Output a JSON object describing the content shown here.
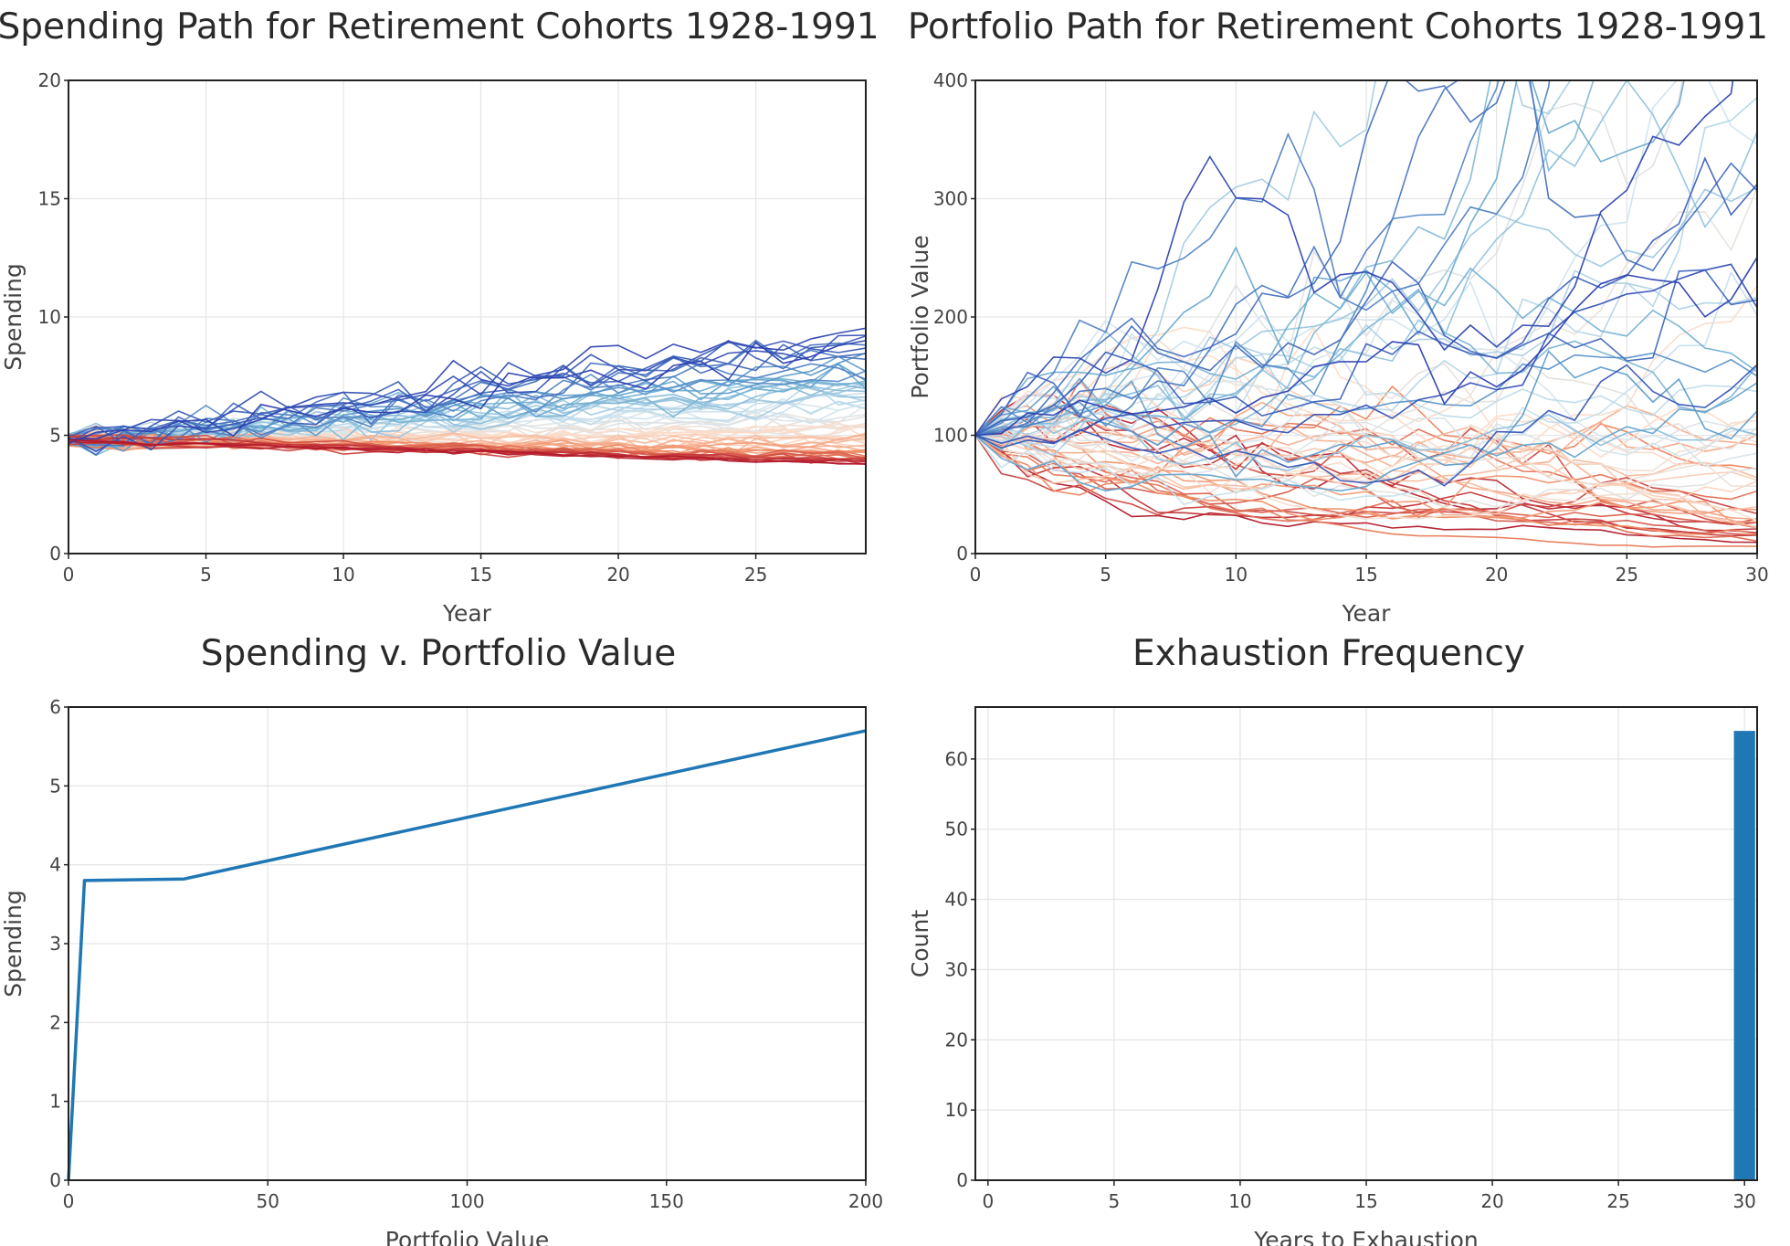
{
  "chart_data": [
    {
      "id": "spending-path",
      "type": "line",
      "title": "Spending Path for Retirement Cohorts 1928-1991",
      "xlabel": "Year",
      "ylabel": "Spending",
      "xlim": [
        0,
        29
      ],
      "ylim": [
        0,
        20
      ],
      "xticks": [
        0,
        5,
        10,
        15,
        20,
        25
      ],
      "yticks": [
        0,
        5,
        10,
        15,
        20
      ],
      "grid": true,
      "n_series": 64,
      "colormap": [
        "#b2182b",
        "#ef8a62",
        "#fddbc7",
        "#d1e5f0",
        "#67a9cf",
        "#2b3fb0"
      ],
      "start_value": 4.8,
      "end_range": [
        3.8,
        9.8
      ],
      "note_series": "64 cohort paths colored from red (lowest) to blue (highest)"
    },
    {
      "id": "portfolio-path",
      "type": "line",
      "title": "Portfolio Path for Retirement Cohorts 1928-1991",
      "xlabel": "Year",
      "ylabel": "Portfolio Value",
      "xlim": [
        0,
        30
      ],
      "ylim": [
        0,
        400
      ],
      "xticks": [
        0,
        5,
        10,
        15,
        20,
        25,
        30
      ],
      "yticks": [
        0,
        100,
        200,
        300,
        400
      ],
      "grid": true,
      "n_series": 64,
      "colormap": [
        "#b2182b",
        "#ef8a62",
        "#fddbc7",
        "#d1e5f0",
        "#67a9cf",
        "#2b3fb0"
      ],
      "start_value": 100,
      "end_range": [
        5,
        480
      ]
    },
    {
      "id": "spending-v-portfolio",
      "type": "line",
      "title": "Spending v. Portfolio Value",
      "xlabel": "Portfolio Value",
      "ylabel": "Spending",
      "xlim": [
        0,
        200
      ],
      "ylim": [
        0,
        6
      ],
      "xticks": [
        0,
        50,
        100,
        150,
        200
      ],
      "yticks": [
        0,
        1,
        2,
        3,
        4,
        5,
        6
      ],
      "grid": true,
      "series": [
        {
          "color": "#1f77b4",
          "points": [
            [
              0,
              0
            ],
            [
              4,
              3.8
            ],
            [
              29,
              3.82
            ],
            [
              200,
              5.7
            ]
          ]
        }
      ]
    },
    {
      "id": "exhaustion-frequency",
      "type": "bar",
      "title": "Exhaustion Frequency",
      "xlabel": "Years to Exhaustion",
      "ylabel": "Count",
      "xlim": [
        -0.5,
        30.5
      ],
      "ylim": [
        0,
        67.4
      ],
      "xticks": [
        0,
        5,
        10,
        15,
        20,
        25,
        30
      ],
      "yticks": [
        0,
        10,
        20,
        30,
        40,
        50,
        60
      ],
      "grid": true,
      "bar_color": "#1f77b4",
      "bars": [
        {
          "x": 30,
          "value": 64
        }
      ]
    }
  ]
}
